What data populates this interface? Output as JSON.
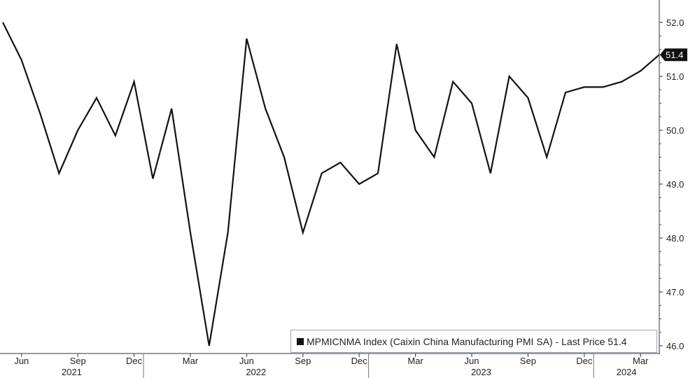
{
  "chart_data": {
    "type": "line",
    "series": [
      {
        "name": "MPMICNMA Index (Caixin China Manufacturing PMI SA)",
        "color": "#111111",
        "points": [
          {
            "x": "2021-05",
            "y": 52.0
          },
          {
            "x": "2021-06",
            "y": 51.3
          },
          {
            "x": "2021-07",
            "y": 50.3
          },
          {
            "x": "2021-08",
            "y": 49.2
          },
          {
            "x": "2021-09",
            "y": 50.0
          },
          {
            "x": "2021-10",
            "y": 50.6
          },
          {
            "x": "2021-11",
            "y": 49.9
          },
          {
            "x": "2021-12",
            "y": 50.9
          },
          {
            "x": "2022-01",
            "y": 49.1
          },
          {
            "x": "2022-02",
            "y": 50.4
          },
          {
            "x": "2022-03",
            "y": 48.1
          },
          {
            "x": "2022-04",
            "y": 46.0
          },
          {
            "x": "2022-05",
            "y": 48.1
          },
          {
            "x": "2022-06",
            "y": 51.7
          },
          {
            "x": "2022-07",
            "y": 50.4
          },
          {
            "x": "2022-08",
            "y": 49.5
          },
          {
            "x": "2022-09",
            "y": 48.1
          },
          {
            "x": "2022-10",
            "y": 49.2
          },
          {
            "x": "2022-11",
            "y": 49.4
          },
          {
            "x": "2022-12",
            "y": 49.0
          },
          {
            "x": "2023-01",
            "y": 49.2
          },
          {
            "x": "2023-02",
            "y": 51.6
          },
          {
            "x": "2023-03",
            "y": 50.0
          },
          {
            "x": "2023-04",
            "y": 49.5
          },
          {
            "x": "2023-05",
            "y": 50.9
          },
          {
            "x": "2023-06",
            "y": 50.5
          },
          {
            "x": "2023-07",
            "y": 49.2
          },
          {
            "x": "2023-08",
            "y": 51.0
          },
          {
            "x": "2023-09",
            "y": 50.6
          },
          {
            "x": "2023-10",
            "y": 49.5
          },
          {
            "x": "2023-11",
            "y": 50.7
          },
          {
            "x": "2023-12",
            "y": 50.8
          },
          {
            "x": "2024-01",
            "y": 50.8
          },
          {
            "x": "2024-02",
            "y": 50.9
          },
          {
            "x": "2024-03",
            "y": 51.1
          },
          {
            "x": "2024-04",
            "y": 51.4
          }
        ]
      }
    ],
    "yticks": [
      "52.0",
      "51.0",
      "50.0",
      "49.0",
      "48.0",
      "47.0",
      "46.0"
    ],
    "ylim": [
      46.0,
      52.0
    ],
    "y_axis_side": "right",
    "month_ticks": [
      {
        "label": "Jun",
        "month": "2021-06"
      },
      {
        "label": "Sep",
        "month": "2021-09"
      },
      {
        "label": "Dec",
        "month": "2021-12"
      },
      {
        "label": "Mar",
        "month": "2022-03"
      },
      {
        "label": "Jun",
        "month": "2022-06"
      },
      {
        "label": "Sep",
        "month": "2022-09"
      },
      {
        "label": "Dec",
        "month": "2022-12"
      },
      {
        "label": "Mar",
        "month": "2023-03"
      },
      {
        "label": "Jun",
        "month": "2023-06"
      },
      {
        "label": "Sep",
        "month": "2023-09"
      },
      {
        "label": "Dec",
        "month": "2023-12"
      },
      {
        "label": "Mar",
        "month": "2024-03"
      }
    ],
    "year_labels": [
      {
        "label": "2021",
        "year": 2021
      },
      {
        "label": "2022",
        "year": 2022
      },
      {
        "label": "2023",
        "year": 2023
      },
      {
        "label": "2024",
        "year": 2024
      }
    ],
    "last_price_tag": "51.4",
    "legend_text": "MPMICNMA Index (Caixin China Manufacturing PMI SA) - Last Price 51.4",
    "legend_position": "bottom-right",
    "grid": false
  }
}
